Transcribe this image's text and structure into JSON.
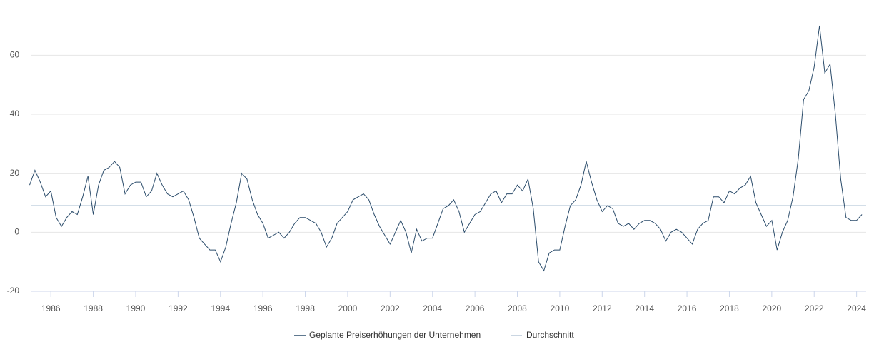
{
  "chart_data": {
    "type": "line",
    "x": [
      1985,
      1985.25,
      1985.5,
      1985.75,
      1986,
      1986.25,
      1986.5,
      1986.75,
      1987,
      1987.25,
      1987.5,
      1987.75,
      1988,
      1988.25,
      1988.5,
      1988.75,
      1989,
      1989.25,
      1989.5,
      1989.75,
      1990,
      1990.25,
      1990.5,
      1990.75,
      1991,
      1991.25,
      1991.5,
      1991.75,
      1992,
      1992.25,
      1992.5,
      1992.75,
      1993,
      1993.25,
      1993.5,
      1993.75,
      1994,
      1994.25,
      1994.5,
      1994.75,
      1995,
      1995.25,
      1995.5,
      1995.75,
      1996,
      1996.25,
      1996.5,
      1996.75,
      1997,
      1997.25,
      1997.5,
      1997.75,
      1998,
      1998.25,
      1998.5,
      1998.75,
      1999,
      1999.25,
      1999.5,
      1999.75,
      2000,
      2000.25,
      2000.5,
      2000.75,
      2001,
      2001.25,
      2001.5,
      2001.75,
      2002,
      2002.25,
      2002.5,
      2002.75,
      2003,
      2003.25,
      2003.5,
      2003.75,
      2004,
      2004.25,
      2004.5,
      2004.75,
      2005,
      2005.25,
      2005.5,
      2005.75,
      2006,
      2006.25,
      2006.5,
      2006.75,
      2007,
      2007.25,
      2007.5,
      2007.75,
      2008,
      2008.25,
      2008.5,
      2008.75,
      2009,
      2009.25,
      2009.5,
      2009.75,
      2010,
      2010.25,
      2010.5,
      2010.75,
      2011,
      2011.25,
      2011.5,
      2011.75,
      2012,
      2012.25,
      2012.5,
      2012.75,
      2013,
      2013.25,
      2013.5,
      2013.75,
      2014,
      2014.25,
      2014.5,
      2014.75,
      2015,
      2015.25,
      2015.5,
      2015.75,
      2016,
      2016.25,
      2016.5,
      2016.75,
      2017,
      2017.25,
      2017.5,
      2017.75,
      2018,
      2018.25,
      2018.5,
      2018.75,
      2019,
      2019.25,
      2019.5,
      2019.75,
      2020,
      2020.25,
      2020.5,
      2020.75,
      2021,
      2021.25,
      2021.5,
      2021.75,
      2022,
      2022.25,
      2022.5,
      2022.75,
      2023,
      2023.25,
      2023.5,
      2023.75,
      2024,
      2024.25
    ],
    "series": [
      {
        "name": "Geplante Preiserhöhungen der Unternehmen",
        "color": "#2b4c6b",
        "values": [
          16,
          21,
          17,
          12,
          14,
          5,
          2,
          5,
          7,
          6,
          12,
          19,
          6,
          16,
          21,
          22,
          24,
          22,
          13,
          16,
          17,
          17,
          12,
          14,
          20,
          16,
          13,
          12,
          13,
          14,
          11,
          5,
          -2,
          -4,
          -6,
          -6,
          -10,
          -5,
          3,
          10,
          20,
          18,
          11,
          6,
          3,
          -2,
          -1,
          0,
          -2,
          0,
          3,
          5,
          5,
          4,
          3,
          0,
          -5,
          -2,
          3,
          5,
          7,
          11,
          12,
          13,
          11,
          6,
          2,
          -1,
          -4,
          0,
          4,
          0,
          -7,
          1,
          -3,
          -2,
          -2,
          3,
          8,
          9,
          11,
          7,
          0,
          3,
          6,
          7,
          10,
          13,
          14,
          10,
          13,
          13,
          16,
          14,
          18,
          8,
          -10,
          -13,
          -7,
          -6,
          -6,
          2,
          9,
          11,
          16,
          24,
          17,
          11,
          7,
          9,
          8,
          3,
          2,
          3,
          1,
          3,
          4,
          4,
          3,
          1,
          -3,
          0,
          1,
          0,
          -2,
          -4,
          1,
          3,
          4,
          12,
          12,
          10,
          14,
          13,
          15,
          16,
          19,
          10,
          6,
          2,
          4,
          -6,
          0,
          4,
          12,
          25,
          45,
          48,
          56,
          70,
          54,
          57,
          40,
          18,
          5,
          4,
          4,
          6
        ]
      }
    ],
    "average": {
      "name": "Durchschnitt",
      "value": 9,
      "color": "#b9c9d9"
    },
    "xlim": [
      1985.05,
      2024.45
    ],
    "xticks": [
      1986,
      1988,
      1990,
      1992,
      1994,
      1996,
      1998,
      2000,
      2002,
      2004,
      2006,
      2008,
      2010,
      2012,
      2014,
      2016,
      2018,
      2020,
      2022,
      2024
    ],
    "ylim": [
      -20,
      75
    ],
    "yticks": [
      -20,
      0,
      20,
      40,
      60
    ],
    "grid": true
  }
}
